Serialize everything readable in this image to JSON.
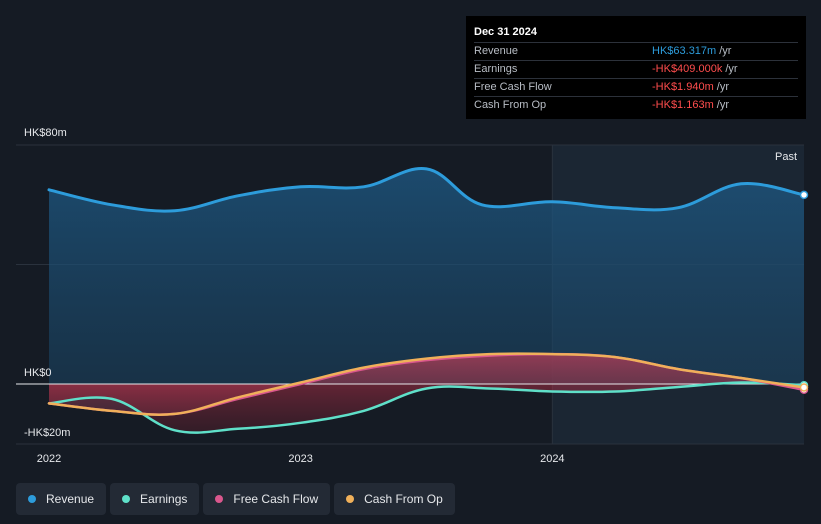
{
  "tooltip": {
    "date": "Dec 31 2024",
    "rows": [
      {
        "label": "Revenue",
        "value": "HK$63.317m",
        "unit": "/yr",
        "color": "#2d9cdb"
      },
      {
        "label": "Earnings",
        "value": "-HK$409.000k",
        "unit": "/yr",
        "color": "#ff4d4d"
      },
      {
        "label": "Free Cash Flow",
        "value": "-HK$1.940m",
        "unit": "/yr",
        "color": "#ff4d4d"
      },
      {
        "label": "Cash From Op",
        "value": "-HK$1.163m",
        "unit": "/yr",
        "color": "#ff4d4d"
      }
    ]
  },
  "legend": [
    {
      "label": "Revenue",
      "color": "#2d9cdb"
    },
    {
      "label": "Earnings",
      "color": "#5fe0c9"
    },
    {
      "label": "Free Cash Flow",
      "color": "#d9578d"
    },
    {
      "label": "Cash From Op",
      "color": "#f0b05a"
    }
  ],
  "chart_data": {
    "type": "area",
    "y_tick_labels": [
      "HK$80m",
      "HK$0",
      "-HK$20m"
    ],
    "x_tick_labels": [
      "2022",
      "2023",
      "2024"
    ],
    "past_label": "Past",
    "ylim": [
      -20,
      80
    ],
    "xlim": [
      2022.0,
      2025.0
    ],
    "series": [
      {
        "name": "Revenue",
        "color": "#2d9cdb",
        "x": [
          2022.0,
          2022.25,
          2022.5,
          2022.75,
          2023.0,
          2023.25,
          2023.5,
          2023.72,
          2024.0,
          2024.25,
          2024.5,
          2024.75,
          2025.0
        ],
        "values": [
          65,
          60,
          58,
          63,
          66,
          66,
          72,
          60,
          61,
          59,
          59,
          67,
          63.3
        ]
      },
      {
        "name": "Earnings",
        "color": "#5fe0c9",
        "x": [
          2022.0,
          2022.25,
          2022.5,
          2022.75,
          2023.0,
          2023.25,
          2023.5,
          2023.75,
          2024.0,
          2024.25,
          2024.5,
          2024.75,
          2025.0
        ],
        "values": [
          -6.5,
          -5.0,
          -15.5,
          -15.0,
          -13.0,
          -9.0,
          -1.5,
          -1.5,
          -2.5,
          -2.5,
          -1.0,
          0.5,
          -0.409
        ]
      },
      {
        "name": "Free Cash Flow",
        "color": "#d9578d",
        "x": [
          2022.0,
          2022.25,
          2022.5,
          2022.75,
          2023.0,
          2023.25,
          2023.5,
          2023.75,
          2024.0,
          2024.25,
          2024.5,
          2024.75,
          2025.0
        ],
        "values": [
          -6.5,
          -9.0,
          -10.0,
          -5.0,
          0.0,
          5.0,
          8.0,
          9.5,
          10.0,
          9.0,
          5.0,
          2.0,
          -1.94
        ]
      },
      {
        "name": "Cash From Op",
        "color": "#f0b05a",
        "x": [
          2022.0,
          2022.25,
          2022.5,
          2022.75,
          2023.0,
          2023.25,
          2023.5,
          2023.75,
          2024.0,
          2024.25,
          2024.5,
          2024.75,
          2025.0
        ],
        "values": [
          -6.5,
          -9.0,
          -10.0,
          -4.5,
          0.5,
          5.5,
          8.5,
          10.0,
          10.0,
          9.0,
          5.0,
          2.0,
          -1.163
        ]
      }
    ]
  }
}
